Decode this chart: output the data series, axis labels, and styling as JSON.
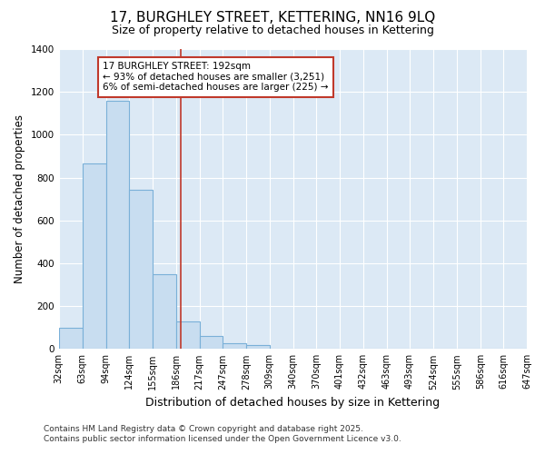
{
  "title": "17, BURGHLEY STREET, KETTERING, NN16 9LQ",
  "subtitle": "Size of property relative to detached houses in Kettering",
  "xlabel": "Distribution of detached houses by size in Kettering",
  "ylabel": "Number of detached properties",
  "footer_line1": "Contains HM Land Registry data © Crown copyright and database right 2025.",
  "footer_line2": "Contains public sector information licensed under the Open Government Licence v3.0.",
  "bin_edges": [
    32,
    63,
    94,
    124,
    155,
    186,
    217,
    247,
    278,
    309,
    340,
    370,
    401,
    432,
    463,
    493,
    524,
    555,
    586,
    616,
    647
  ],
  "bar_heights": [
    100,
    868,
    1160,
    745,
    350,
    130,
    62,
    28,
    18,
    0,
    0,
    0,
    0,
    0,
    0,
    0,
    0,
    0,
    0,
    0
  ],
  "bar_color": "#c8ddf0",
  "bar_edge_color": "#7ab0d8",
  "property_size": 192,
  "vline_color": "#c0392b",
  "annotation_line1": "17 BURGHLEY STREET: 192sqm",
  "annotation_line2": "← 93% of detached houses are smaller (3,251)",
  "annotation_line3": "6% of semi-detached houses are larger (225) →",
  "annotation_box_color": "#ffffff",
  "annotation_box_edge_color": "#c0392b",
  "ylim": [
    0,
    1400
  ],
  "xlim": [
    32,
    647
  ],
  "fig_bg_color": "#ffffff",
  "plot_bg_color": "#dce9f5",
  "grid_color": "#ffffff",
  "title_fontsize": 11,
  "subtitle_fontsize": 9,
  "tick_fontsize": 7,
  "ylabel_fontsize": 8.5,
  "xlabel_fontsize": 9,
  "footer_fontsize": 6.5
}
